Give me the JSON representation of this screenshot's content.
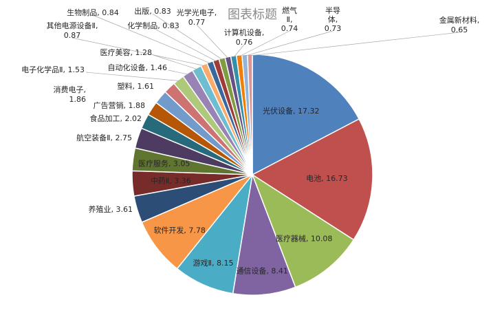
{
  "chart_data": {
    "type": "pie",
    "title": "图表标题",
    "start_angle_deg": 0,
    "direction": "clockwise",
    "slices": [
      {
        "label": "光伏设备",
        "value": 17.32,
        "color": "#4f81bd"
      },
      {
        "label": "电池",
        "value": 16.73,
        "color": "#c0504d"
      },
      {
        "label": "医疗器械",
        "value": 10.08,
        "color": "#9bbb59"
      },
      {
        "label": "通信设备",
        "value": 8.41,
        "color": "#8064a2"
      },
      {
        "label": "游戏Ⅱ",
        "value": 8.15,
        "color": "#4bacc6"
      },
      {
        "label": "软件开发",
        "value": 7.78,
        "color": "#f79646"
      },
      {
        "label": "养殖业",
        "value": 3.61,
        "color": "#2c4d75"
      },
      {
        "label": "中药Ⅱ",
        "value": 3.36,
        "color": "#772c2a"
      },
      {
        "label": "医疗服务",
        "value": 3.05,
        "color": "#5f7530"
      },
      {
        "label": "航空装备Ⅱ",
        "value": 2.75,
        "color": "#4d3b62"
      },
      {
        "label": "食品加工",
        "value": 2.02,
        "color": "#276a7c"
      },
      {
        "label": "广告营销",
        "value": 1.88,
        "color": "#b65708"
      },
      {
        "label": "消费电子",
        "value": 1.86,
        "color": "#729aca"
      },
      {
        "label": "塑料",
        "value": 1.61,
        "color": "#cd7371"
      },
      {
        "label": "电子化学品Ⅱ",
        "value": 1.53,
        "color": "#afc97a"
      },
      {
        "label": "自动化设备",
        "value": 1.46,
        "color": "#9983b5"
      },
      {
        "label": "医疗美容",
        "value": 1.28,
        "color": "#6fbdd1"
      },
      {
        "label": "其他电源设备Ⅱ",
        "value": 0.87,
        "color": "#f9ab6b"
      },
      {
        "label": "生物制品",
        "value": 0.84,
        "color": "#3a679c"
      },
      {
        "label": "化学制品",
        "value": 0.83,
        "color": "#9f3b38"
      },
      {
        "label": "出版",
        "value": 0.83,
        "color": "#7f9c40"
      },
      {
        "label": "光学光电子",
        "value": 0.77,
        "color": "#664f83"
      },
      {
        "label": "计算机设备",
        "value": 0.76,
        "color": "#358fa6"
      },
      {
        "label": "燃气Ⅱ",
        "value": 0.74,
        "color": "#f07f09"
      },
      {
        "label": "半导体",
        "value": 0.73,
        "color": "#95b3d7"
      },
      {
        "label": "金属新材料",
        "value": 0.65,
        "color": "#d99694"
      }
    ],
    "legend": "none",
    "data_labels": "category, value"
  }
}
